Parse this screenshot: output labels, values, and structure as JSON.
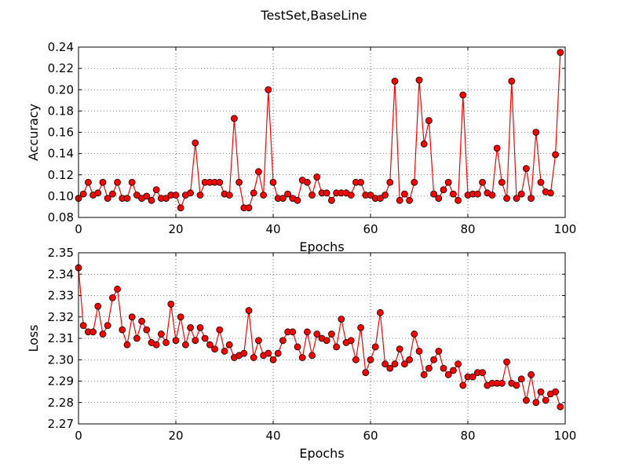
{
  "chart_data": [
    {
      "type": "line",
      "figure_title": "TestSet,BaseLine",
      "title": "",
      "xlabel": "Epochs",
      "ylabel": "Accuracy",
      "xlim": [
        0,
        100
      ],
      "ylim": [
        0.08,
        0.24
      ],
      "xticks": [
        "0",
        "20",
        "40",
        "60",
        "80",
        "100"
      ],
      "yticks": [
        "0.08",
        "0.10",
        "0.12",
        "0.14",
        "0.16",
        "0.18",
        "0.20",
        "0.22",
        "0.24"
      ],
      "grid": true,
      "line_color": "#ff0000",
      "marker_color": "#ff0000",
      "x": [
        0,
        1,
        2,
        3,
        4,
        5,
        6,
        7,
        8,
        9,
        10,
        11,
        12,
        13,
        14,
        15,
        16,
        17,
        18,
        19,
        20,
        21,
        22,
        23,
        24,
        25,
        26,
        27,
        28,
        29,
        30,
        31,
        32,
        33,
        34,
        35,
        36,
        37,
        38,
        39,
        40,
        41,
        42,
        43,
        44,
        45,
        46,
        47,
        48,
        49,
        50,
        51,
        52,
        53,
        54,
        55,
        56,
        57,
        58,
        59,
        60,
        61,
        62,
        63,
        64,
        65,
        66,
        67,
        68,
        69,
        70,
        71,
        72,
        73,
        74,
        75,
        76,
        77,
        78,
        79,
        80,
        81,
        82,
        83,
        84,
        85,
        86,
        87,
        88,
        89,
        90,
        91,
        92,
        93,
        94,
        95,
        96,
        97,
        98,
        99
      ],
      "series": [
        {
          "values": [
            0.098,
            0.102,
            0.113,
            0.101,
            0.103,
            0.113,
            0.098,
            0.102,
            0.113,
            0.098,
            0.098,
            0.113,
            0.101,
            0.098,
            0.1,
            0.096,
            0.106,
            0.098,
            0.098,
            0.101,
            0.101,
            0.089,
            0.101,
            0.103,
            0.15,
            0.101,
            0.113,
            0.113,
            0.113,
            0.113,
            0.102,
            0.101,
            0.173,
            0.113,
            0.089,
            0.089,
            0.103,
            0.123,
            0.101,
            0.2,
            0.113,
            0.098,
            0.098,
            0.102,
            0.098,
            0.096,
            0.115,
            0.113,
            0.101,
            0.118,
            0.103,
            0.103,
            0.096,
            0.103,
            0.103,
            0.103,
            0.101,
            0.113,
            0.113,
            0.101,
            0.101,
            0.098,
            0.098,
            0.101,
            0.113,
            0.208,
            0.096,
            0.102,
            0.096,
            0.113,
            0.209,
            0.149,
            0.171,
            0.102,
            0.098,
            0.106,
            0.113,
            0.102,
            0.096,
            0.195,
            0.101,
            0.102,
            0.102,
            0.113,
            0.103,
            0.101,
            0.145,
            0.113,
            0.098,
            0.208,
            0.098,
            0.102,
            0.126,
            0.098,
            0.16,
            0.113,
            0.104,
            0.103,
            0.139,
            0.235
          ]
        }
      ]
    },
    {
      "type": "line",
      "title": "",
      "xlabel": "Epochs",
      "ylabel": "Loss",
      "xlim": [
        0,
        100
      ],
      "ylim": [
        2.27,
        2.35
      ],
      "xticks": [
        "0",
        "20",
        "40",
        "60",
        "80",
        "100"
      ],
      "yticks": [
        "2.27",
        "2.28",
        "2.29",
        "2.30",
        "2.31",
        "2.32",
        "2.33",
        "2.34",
        "2.35"
      ],
      "grid": true,
      "line_color": "#ff0000",
      "marker_color": "#ff0000",
      "x": [
        0,
        1,
        2,
        3,
        4,
        5,
        6,
        7,
        8,
        9,
        10,
        11,
        12,
        13,
        14,
        15,
        16,
        17,
        18,
        19,
        20,
        21,
        22,
        23,
        24,
        25,
        26,
        27,
        28,
        29,
        30,
        31,
        32,
        33,
        34,
        35,
        36,
        37,
        38,
        39,
        40,
        41,
        42,
        43,
        44,
        45,
        46,
        47,
        48,
        49,
        50,
        51,
        52,
        53,
        54,
        55,
        56,
        57,
        58,
        59,
        60,
        61,
        62,
        63,
        64,
        65,
        66,
        67,
        68,
        69,
        70,
        71,
        72,
        73,
        74,
        75,
        76,
        77,
        78,
        79,
        80,
        81,
        82,
        83,
        84,
        85,
        86,
        87,
        88,
        89,
        90,
        91,
        92,
        93,
        94,
        95,
        96,
        97,
        98,
        99
      ],
      "series": [
        {
          "values": [
            2.343,
            2.316,
            2.313,
            2.313,
            2.325,
            2.312,
            2.316,
            2.329,
            2.333,
            2.314,
            2.307,
            2.32,
            2.31,
            2.318,
            2.314,
            2.308,
            2.307,
            2.312,
            2.308,
            2.326,
            2.309,
            2.32,
            2.307,
            2.315,
            2.309,
            2.315,
            2.31,
            2.307,
            2.305,
            2.314,
            2.304,
            2.307,
            2.301,
            2.302,
            2.303,
            2.323,
            2.301,
            2.309,
            2.302,
            2.303,
            2.3,
            2.303,
            2.309,
            2.313,
            2.313,
            2.306,
            2.301,
            2.313,
            2.302,
            2.312,
            2.31,
            2.309,
            2.312,
            2.306,
            2.319,
            2.308,
            2.309,
            2.3,
            2.315,
            2.294,
            2.3,
            2.306,
            2.322,
            2.298,
            2.296,
            2.298,
            2.305,
            2.298,
            2.3,
            2.312,
            2.304,
            2.293,
            2.296,
            2.3,
            2.304,
            2.296,
            2.293,
            2.295,
            2.298,
            2.288,
            2.292,
            2.292,
            2.294,
            2.294,
            2.288,
            2.289,
            2.289,
            2.289,
            2.299,
            2.289,
            2.288,
            2.291,
            2.281,
            2.293,
            2.28,
            2.285,
            2.281,
            2.284,
            2.285,
            2.278
          ]
        }
      ]
    }
  ]
}
